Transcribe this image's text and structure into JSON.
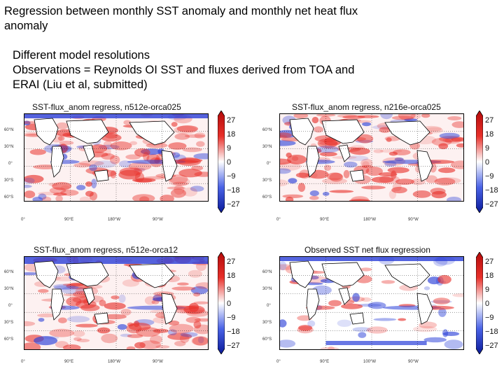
{
  "slide": {
    "title": "Regression between monthly SST anomaly and monthly net heat flux anomaly",
    "notes": [
      "Different model resolutions",
      "Observations = Reynolds OI SST and fluxes derived from TOA and",
      "ERAI (Liu et al, submitted)"
    ]
  },
  "panels": [
    {
      "title": "SST-flux_anom regress, n512e-orca025",
      "lat_labels": [
        "60°N",
        "30°N",
        "0°",
        "30°S",
        "60°S"
      ],
      "lon_labels": [
        "0°",
        "90°E",
        "180°W",
        "90°W"
      ],
      "colorbar_ticks": [
        "27",
        "18",
        "9",
        "0",
        "−9",
        "−18",
        "−27"
      ]
    },
    {
      "title": "SST-flux_anom regress, n216e-orca025",
      "lat_labels": [
        "60°N",
        "30°N",
        "0°",
        "30°S",
        "60°S"
      ],
      "lon_labels": [
        "0°",
        "90°E",
        "180°W",
        "90°W"
      ],
      "colorbar_ticks": [
        "27",
        "18",
        "9",
        "0",
        "−9",
        "−18",
        "−27"
      ]
    },
    {
      "title": "SST-flux_anom regress, n512e-orca12",
      "lat_labels": [
        "60°N",
        "30°N",
        "0°",
        "30°S",
        "60°S"
      ],
      "lon_labels": [
        "0°",
        "90°E",
        "180°W",
        "90°W"
      ],
      "colorbar_ticks": [
        "27",
        "18",
        "9",
        "0",
        "−9",
        "−18",
        "−27"
      ]
    },
    {
      "title": "Observed SST net flux regression",
      "lat_labels": [
        "60°N",
        "30°N",
        "0°",
        "30°S",
        "60°S"
      ],
      "lon_labels": [
        "0°",
        "90°E",
        "100°W",
        "90°W"
      ],
      "colorbar_ticks": [
        "27",
        "18",
        "9",
        "0",
        "−9",
        "−18",
        "−27"
      ]
    }
  ],
  "colors": {
    "positive": "#e8302a",
    "negative": "#2a3fd8",
    "neutral": "#ffffff",
    "land": "#ffffff"
  }
}
